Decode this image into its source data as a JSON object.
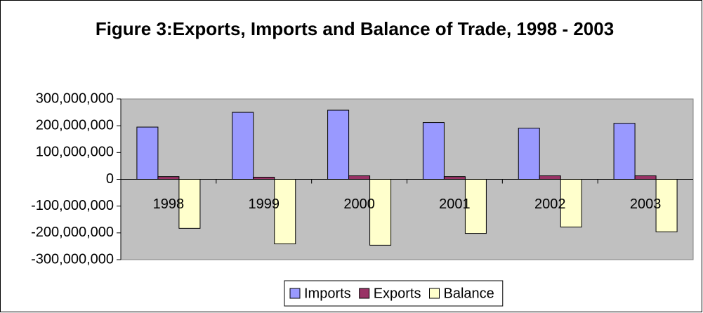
{
  "chart_data": {
    "type": "bar",
    "title": "Figure 3:Exports, Imports and Balance of Trade, 1998 - 2003",
    "categories": [
      "1998",
      "1999",
      "2000",
      "2001",
      "2002",
      "2003"
    ],
    "series": [
      {
        "name": "Imports",
        "color": "#9999FF",
        "values": [
          195000000,
          250000000,
          258000000,
          212000000,
          191000000,
          209000000
        ]
      },
      {
        "name": "Exports",
        "color": "#993366",
        "values": [
          10000000,
          8000000,
          13000000,
          10000000,
          13000000,
          13000000
        ]
      },
      {
        "name": "Balance",
        "color": "#FFFFCC",
        "values": [
          -183000000,
          -241000000,
          -246000000,
          -202000000,
          -178000000,
          -196000000
        ]
      }
    ],
    "ylim": [
      -300000000,
      300000000
    ],
    "yticks": [
      {
        "value": -300000000,
        "label": "-300,000,000"
      },
      {
        "value": -200000000,
        "label": "-200,000,000"
      },
      {
        "value": -100000000,
        "label": "-100,000,000"
      },
      0,
      {
        "value": 100000000,
        "label": "100,000,000"
      },
      {
        "value": 200000000,
        "label": "200,000,000"
      },
      {
        "value": 300000000,
        "label": "300,000,000"
      }
    ],
    "plot_background": "#C0C0C0",
    "legend": "bottom"
  }
}
